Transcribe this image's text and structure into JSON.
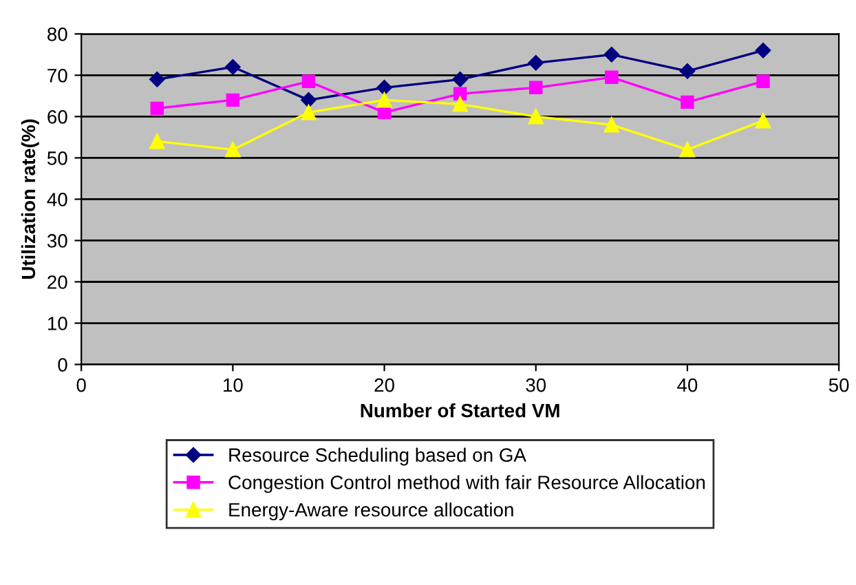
{
  "chart_data": {
    "type": "line",
    "xlabel": "Number of Started VM",
    "ylabel": "Utilization rate(%)",
    "x": [
      5,
      10,
      15,
      20,
      25,
      30,
      35,
      40,
      45
    ],
    "series": [
      {
        "name": "Resource Scheduling based on GA",
        "color": "#000080",
        "marker": "diamond",
        "values": [
          69,
          72,
          64,
          67,
          69,
          73,
          75,
          71,
          76
        ]
      },
      {
        "name": "Congestion Control method with fair Resource Allocation",
        "color": "#ff00ff",
        "marker": "square",
        "values": [
          62,
          64,
          68.5,
          61,
          65.5,
          67,
          69.5,
          63.5,
          68.5
        ]
      },
      {
        "name": "Energy-Aware resource allocation",
        "color": "#ffff00",
        "marker": "triangle",
        "values": [
          54,
          52,
          61,
          64,
          63,
          60,
          58,
          52,
          59
        ]
      }
    ],
    "xlim": [
      0,
      50
    ],
    "xticks": [
      0,
      10,
      20,
      30,
      40,
      50
    ],
    "ylim": [
      0,
      80
    ],
    "yticks": [
      0,
      10,
      20,
      30,
      40,
      50,
      60,
      70,
      80
    ],
    "grid": "y",
    "legend": "bottom"
  }
}
